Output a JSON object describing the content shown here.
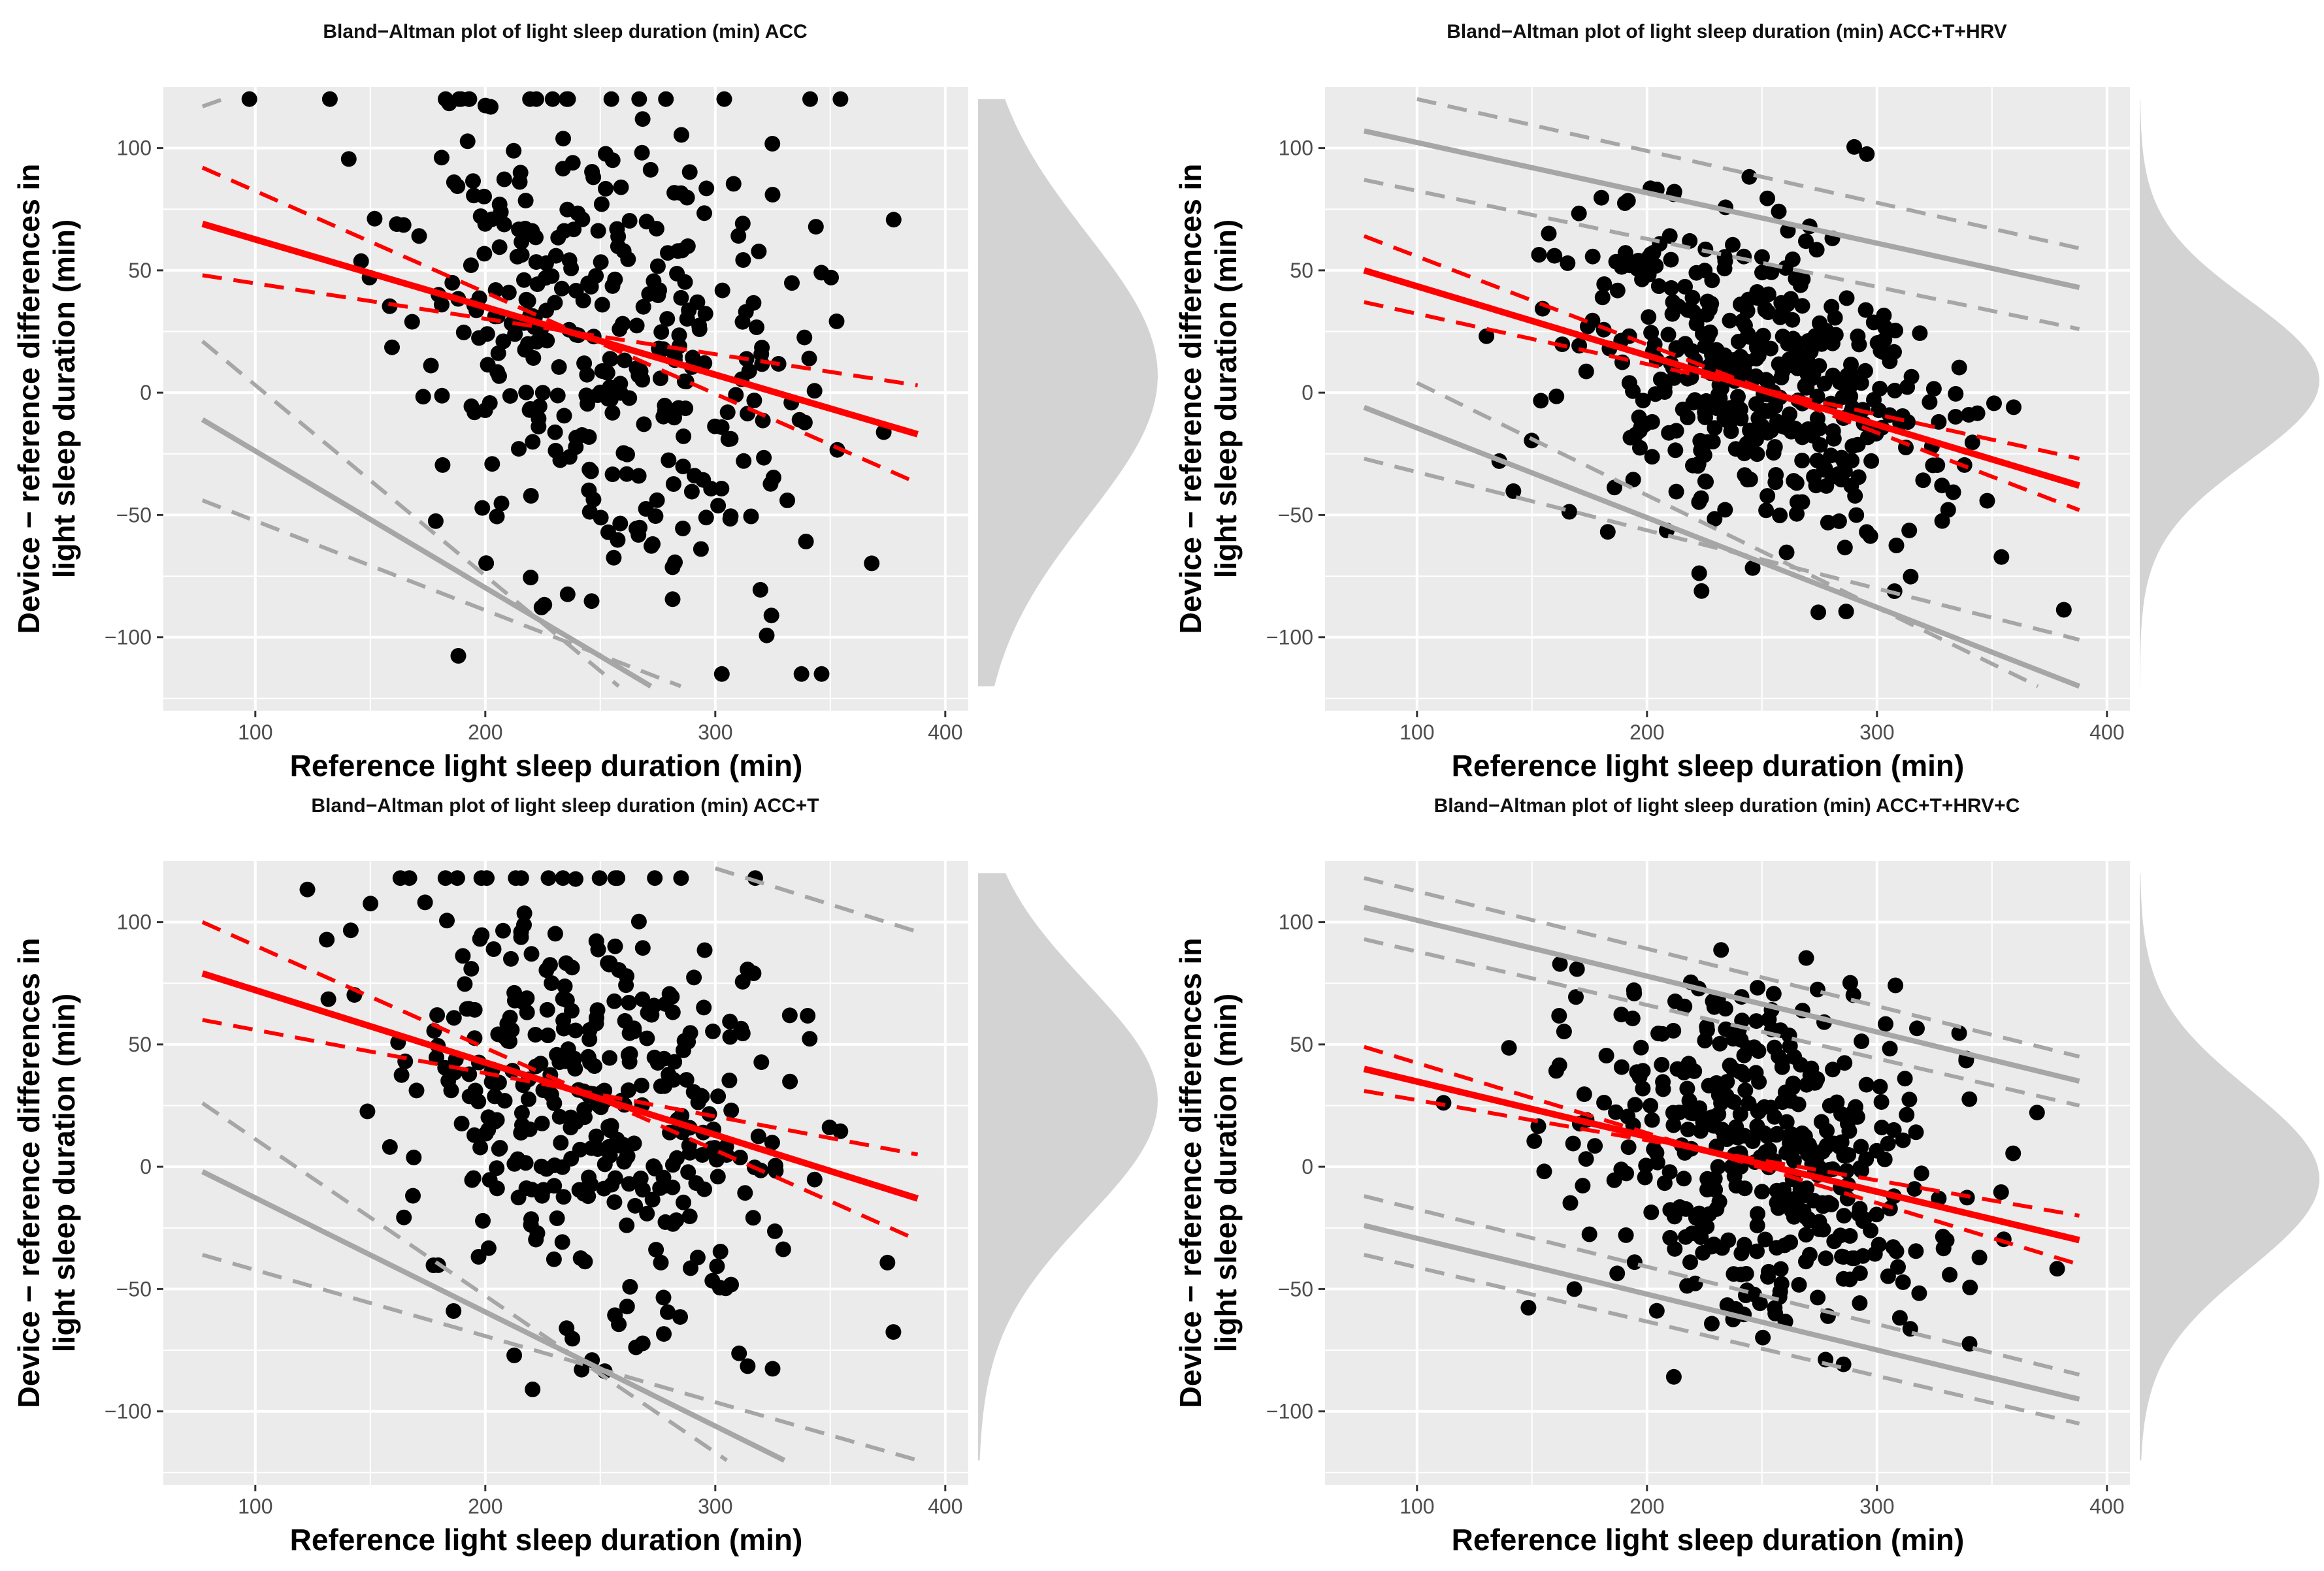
{
  "colors": {
    "panel_bg": "#ebebeb",
    "grid": "#ffffff",
    "points": "#000000",
    "regression": "#ff0000",
    "limits": "#a6a6a6",
    "density": "#d3d3d3"
  },
  "chart_data": [
    {
      "type": "scatter",
      "title": "Bland−Altman plot of light sleep duration (min) ACC",
      "xlabel": "Reference light sleep duration (min)",
      "ylabel": [
        "Device − reference differences in",
        "light sleep duration (min)"
      ],
      "xlim": [
        60,
        410
      ],
      "ylim": [
        -130,
        125
      ],
      "xticks": [
        100,
        200,
        300,
        400
      ],
      "yticks": [
        -100,
        -50,
        0,
        50,
        100
      ],
      "xtick_labels": [
        "100",
        "200",
        "300",
        "400"
      ],
      "ytick_labels": [
        "−100",
        "−50",
        "0",
        "50",
        "100"
      ],
      "grid": true,
      "bias_line": {
        "x": [
          77,
          388
        ],
        "y": [
          69,
          -17
        ]
      },
      "bias_ci": [
        {
          "x": [
            77,
            388
          ],
          "y": [
            92,
            -37
          ]
        },
        {
          "x": [
            77,
            388
          ],
          "y": [
            48,
            3
          ]
        }
      ],
      "lower_loa": {
        "x": [
          77,
          272
        ],
        "y": [
          -11,
          -120
        ]
      },
      "lower_loa_ci": [
        {
          "x": [
            77,
            258
          ],
          "y": [
            21,
            -120
          ]
        },
        {
          "x": [
            77,
            285
          ],
          "y": [
            -44,
            -120
          ]
        }
      ],
      "upper_loa_ci": [
        {
          "x": [
            77,
            86
          ],
          "y": [
            117,
            120
          ]
        }
      ],
      "density": {
        "ymin": -120,
        "ymax": 120,
        "mode": 7,
        "sd": 58
      },
      "seed": 11,
      "clusters": [
        {
          "n": 360,
          "xmean": 250,
          "xsd": 44,
          "ymean": 20,
          "ysd": 52,
          "ymin": -115,
          "ymax": 120,
          "corr": -0.28
        }
      ]
    },
    {
      "type": "scatter",
      "title": "Bland−Altman plot of light sleep duration (min) ACC+T+HRV",
      "xlabel": "Reference light sleep duration (min)",
      "ylabel": [
        "Device − reference differences in",
        "light sleep duration (min)"
      ],
      "xlim": [
        60,
        410
      ],
      "ylim": [
        -130,
        125
      ],
      "xticks": [
        100,
        200,
        300,
        400
      ],
      "yticks": [
        -100,
        -50,
        0,
        50,
        100
      ],
      "xtick_labels": [
        "100",
        "200",
        "300",
        "400"
      ],
      "ytick_labels": [
        "−100",
        "−50",
        "0",
        "50",
        "100"
      ],
      "grid": true,
      "bias_line": {
        "x": [
          77,
          388
        ],
        "y": [
          50,
          -38
        ]
      },
      "bias_ci": [
        {
          "x": [
            77,
            388
          ],
          "y": [
            64,
            -48
          ]
        },
        {
          "x": [
            77,
            388
          ],
          "y": [
            37,
            -27
          ]
        }
      ],
      "upper_loa": {
        "x": [
          77,
          388
        ],
        "y": [
          107,
          43
        ]
      },
      "upper_loa_ci": [
        {
          "x": [
            77,
            388
          ],
          "y": [
            87,
            26
          ]
        },
        {
          "x": [
            100,
            388
          ],
          "y": [
            120,
            59
          ]
        }
      ],
      "lower_loa": {
        "x": [
          77,
          388
        ],
        "y": [
          -6,
          -120
        ]
      },
      "lower_loa_ci": [
        {
          "x": [
            77,
            388
          ],
          "y": [
            -27,
            -101
          ]
        },
        {
          "x": [
            100,
            370
          ],
          "y": [
            4,
            -120
          ]
        }
      ],
      "density": {
        "ymin": -120,
        "ymax": 120,
        "mode": 5,
        "sd": 33
      },
      "seed": 23,
      "clusters": [
        {
          "n": 420,
          "xmean": 245,
          "xsd": 40,
          "ymean": 4,
          "ysd": 33,
          "ymin": -110,
          "ymax": 115,
          "corr": -0.35
        }
      ]
    },
    {
      "type": "scatter",
      "title": "Bland−Altman plot of light sleep duration (min) ACC+T",
      "xlabel": "Reference light sleep duration (min)",
      "ylabel": [
        "Device − reference differences in",
        "light sleep duration (min)"
      ],
      "xlim": [
        60,
        410
      ],
      "ylim": [
        -130,
        125
      ],
      "xticks": [
        100,
        200,
        300,
        400
      ],
      "yticks": [
        -100,
        -50,
        0,
        50,
        100
      ],
      "xtick_labels": [
        "100",
        "200",
        "300",
        "400"
      ],
      "ytick_labels": [
        "−100",
        "−50",
        "0",
        "50",
        "100"
      ],
      "grid": true,
      "bias_line": {
        "x": [
          77,
          388
        ],
        "y": [
          79,
          -13
        ]
      },
      "bias_ci": [
        {
          "x": [
            77,
            388
          ],
          "y": [
            100,
            -30
          ]
        },
        {
          "x": [
            77,
            388
          ],
          "y": [
            60,
            5
          ]
        }
      ],
      "lower_loa": {
        "x": [
          77,
          330
        ],
        "y": [
          -2,
          -120
        ]
      },
      "lower_loa_ci": [
        {
          "x": [
            77,
            305
          ],
          "y": [
            26,
            -120
          ]
        },
        {
          "x": [
            77,
            388
          ],
          "y": [
            -36,
            -120
          ]
        }
      ],
      "upper_loa_ci": [
        {
          "x": [
            300,
            388
          ],
          "y": [
            122,
            96
          ]
        }
      ],
      "density": {
        "ymin": -120,
        "ymax": 120,
        "mode": 27,
        "sd": 48
      },
      "seed": 37,
      "clusters": [
        {
          "n": 380,
          "xmean": 250,
          "xsd": 44,
          "ymean": 27,
          "ysd": 46,
          "ymin": -97,
          "ymax": 118,
          "corr": -0.3
        }
      ]
    },
    {
      "type": "scatter",
      "title": "Bland−Altman plot of light sleep duration (min) ACC+T+HRV+C",
      "xlabel": "Reference light sleep duration (min)",
      "ylabel": [
        "Device − reference differences in",
        "light sleep duration (min)"
      ],
      "xlim": [
        60,
        410
      ],
      "ylim": [
        -130,
        125
      ],
      "xticks": [
        100,
        200,
        300,
        400
      ],
      "yticks": [
        -100,
        -50,
        0,
        50,
        100
      ],
      "xtick_labels": [
        "100",
        "200",
        "300",
        "400"
      ],
      "ytick_labels": [
        "−100",
        "−50",
        "0",
        "50",
        "100"
      ],
      "grid": true,
      "bias_line": {
        "x": [
          77,
          388
        ],
        "y": [
          40,
          -30
        ]
      },
      "bias_ci": [
        {
          "x": [
            77,
            388
          ],
          "y": [
            49,
            -40
          ]
        },
        {
          "x": [
            77,
            388
          ],
          "y": [
            31,
            -20
          ]
        }
      ],
      "upper_loa": {
        "x": [
          77,
          388
        ],
        "y": [
          106,
          35
        ]
      },
      "upper_loa_ci": [
        {
          "x": [
            77,
            388
          ],
          "y": [
            118,
            45
          ]
        },
        {
          "x": [
            77,
            388
          ],
          "y": [
            93,
            25
          ]
        }
      ],
      "lower_loa": {
        "x": [
          77,
          388
        ],
        "y": [
          -24,
          -95
        ]
      },
      "lower_loa_ci": [
        {
          "x": [
            77,
            388
          ],
          "y": [
            -12,
            -85
          ]
        },
        {
          "x": [
            77,
            388
          ],
          "y": [
            -36,
            -105
          ]
        }
      ],
      "density": {
        "ymin": -120,
        "ymax": 120,
        "mode": -5,
        "sd": 37
      },
      "seed": 53,
      "clusters": [
        {
          "n": 420,
          "xmean": 248,
          "xsd": 40,
          "ymean": 5,
          "ysd": 35,
          "ymin": -95,
          "ymax": 105,
          "corr": -0.3
        }
      ]
    }
  ]
}
